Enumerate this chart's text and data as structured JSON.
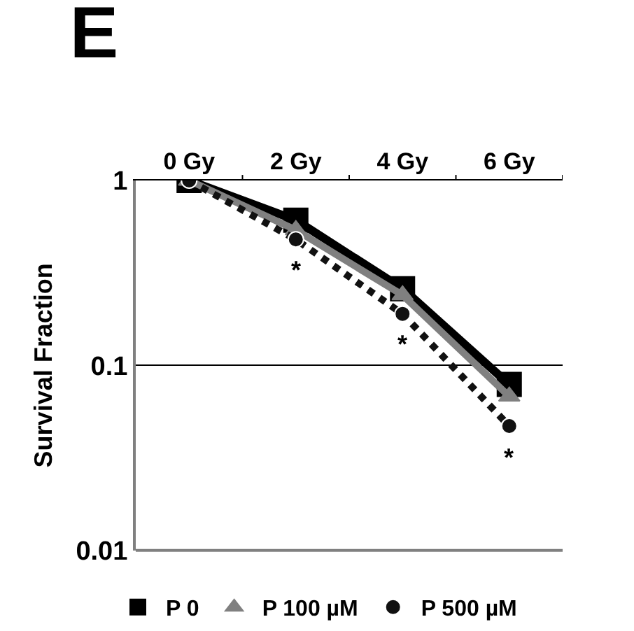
{
  "chart_data": {
    "type": "line",
    "title": "E",
    "ylabel": "Survival Fraction",
    "categories": [
      "0 Gy",
      "2 Gy",
      "4 Gy",
      "6 Gy"
    ],
    "series": [
      {
        "name": "P 0",
        "color": "#000000",
        "values": [
          1.0,
          0.61,
          0.26,
          0.079
        ],
        "marker": "square",
        "line_style": "solid"
      },
      {
        "name": "P 100 µM",
        "color": "#808080",
        "values": [
          1.0,
          0.54,
          0.24,
          0.068
        ],
        "marker": "triangle",
        "line_style": "solid"
      },
      {
        "name": "P 500 µM",
        "color": "#111111",
        "values": [
          1.0,
          0.48,
          0.19,
          0.047
        ],
        "marker": "circle",
        "line_style": "dotted"
      }
    ],
    "annotations": [
      "*",
      "*",
      "*"
    ],
    "log": "y",
    "ylim": [
      0.01,
      1
    ],
    "yticks": [
      0.01,
      0.1,
      1
    ],
    "grid": "y",
    "legend": "bottom"
  }
}
